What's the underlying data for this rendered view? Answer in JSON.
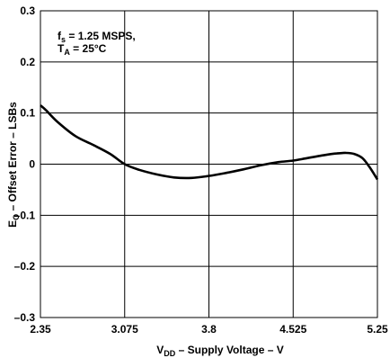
{
  "chart_data": {
    "type": "line",
    "xlabel": {
      "main": "V",
      "sub": "DD",
      "rest": " – Supply Voltage – V"
    },
    "ylabel": {
      "main": "E",
      "sub": "O",
      "rest": " – Offset Error – LSBs"
    },
    "annotation": {
      "line1": {
        "main": "f",
        "sub": "s",
        "rest": " = 1.25 MSPS,"
      },
      "line2": {
        "main": "T",
        "sub": "A",
        "rest": " = 25°C"
      }
    },
    "xlim": [
      2.35,
      5.25
    ],
    "ylim": [
      -0.3,
      0.3
    ],
    "xticks": [
      2.35,
      3.075,
      3.8,
      4.525,
      5.25
    ],
    "xtick_labels": [
      "2.35",
      "3.075",
      "3.8",
      "4.525",
      "5.25"
    ],
    "yticks": [
      0.3,
      0.2,
      0.1,
      0,
      -0.1,
      -0.2,
      -0.3
    ],
    "ytick_labels": [
      "0.3",
      "0.2",
      "0.1",
      "0",
      "–0.1",
      "–0.2",
      "–0.3"
    ],
    "grid": true,
    "series": [
      {
        "x": [
          2.35,
          2.4,
          2.5,
          2.65,
          2.8,
          2.95,
          3.075,
          3.2,
          3.35,
          3.5,
          3.65,
          3.8,
          3.95,
          4.1,
          4.25,
          4.4,
          4.525,
          4.65,
          4.8,
          4.9,
          4.98,
          5.05,
          5.12,
          5.18,
          5.25
        ],
        "values": [
          0.115,
          0.105,
          0.082,
          0.055,
          0.038,
          0.02,
          0.0,
          -0.011,
          -0.02,
          -0.026,
          -0.027,
          -0.023,
          -0.017,
          -0.01,
          -0.002,
          0.004,
          0.007,
          0.012,
          0.018,
          0.021,
          0.022,
          0.02,
          0.012,
          -0.005,
          -0.03
        ]
      }
    ]
  }
}
